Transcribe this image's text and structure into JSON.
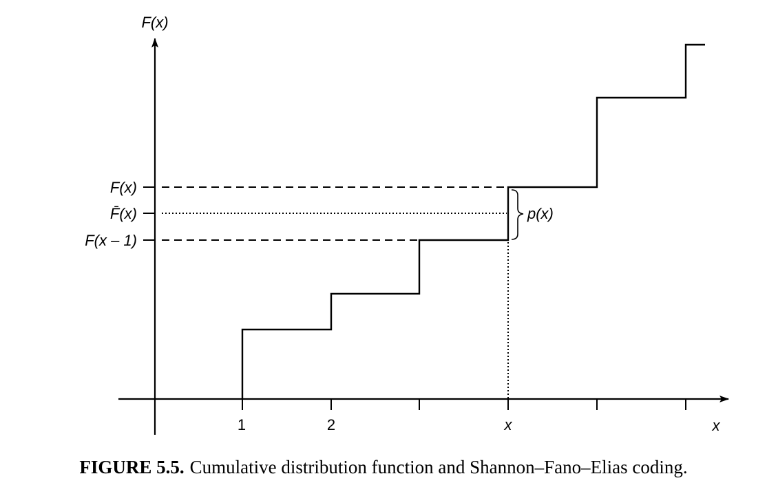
{
  "axes": {
    "y_label": "F(x)",
    "x_label": "x",
    "x_ticks": [
      "1",
      "2",
      "",
      "x",
      "",
      ""
    ]
  },
  "levels": {
    "upper": "F(x)",
    "middle": "F̄(x)",
    "lower": "F(x – 1)"
  },
  "brace_label": "p(x)",
  "caption": {
    "number": "FIGURE 5.5.",
    "text": "Cumulative distribution function and Shannon–Fano–Elias coding."
  }
}
